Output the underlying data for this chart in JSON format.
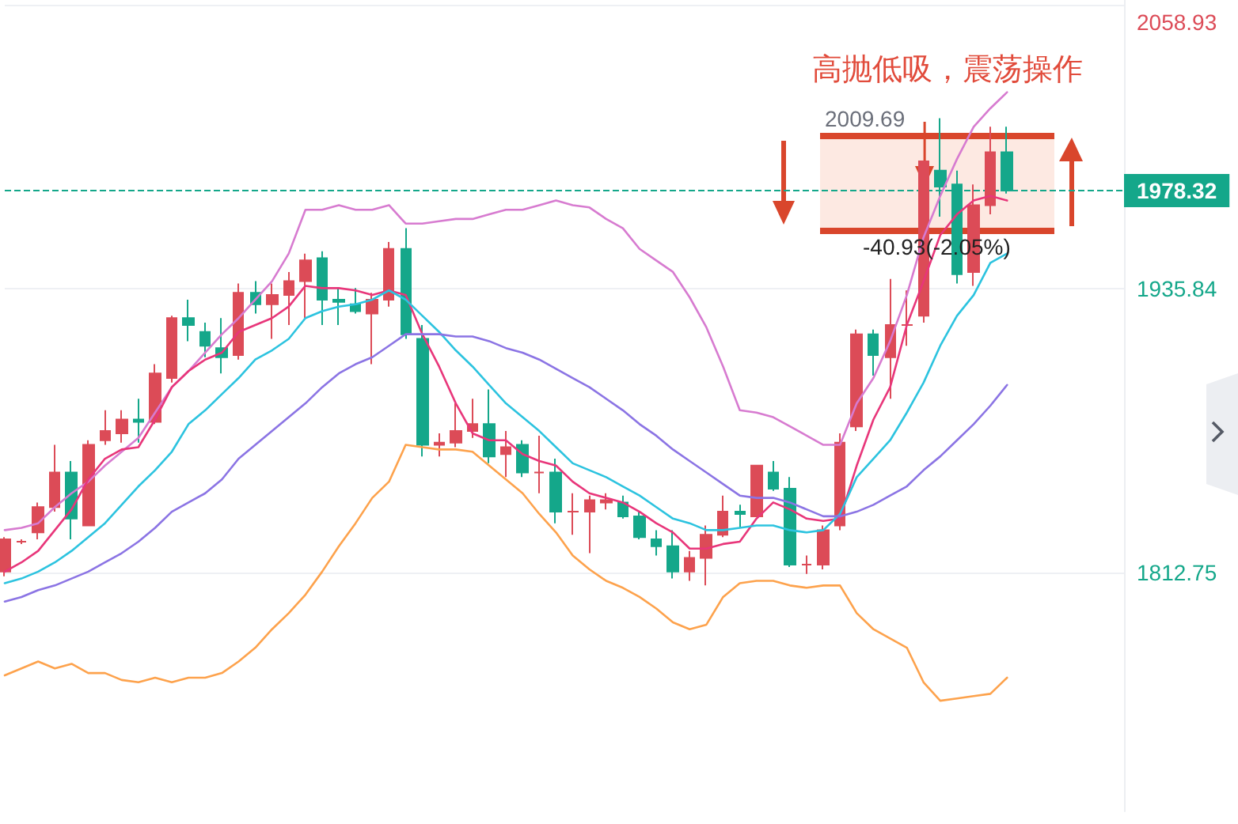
{
  "chart_data": {
    "type": "candlestick",
    "title": "高抛低吸，震荡操作",
    "categories": [
      null,
      null,
      null,
      null,
      null,
      null,
      null,
      null,
      null,
      null,
      null,
      null,
      null,
      null,
      null,
      null,
      null,
      null,
      null,
      null,
      null,
      null,
      null,
      null,
      null,
      null,
      null,
      null,
      null,
      null,
      null,
      null,
      null,
      null,
      null,
      null,
      null,
      null,
      null,
      null,
      null,
      null,
      null,
      null,
      null,
      null,
      null,
      null,
      null,
      null,
      null,
      null,
      null,
      null,
      null,
      null,
      null,
      null,
      null,
      null,
      null,
      null,
      null,
      null,
      null,
      null,
      null,
      null
    ],
    "series": [
      {
        "ohlc": [
          [
            1813,
            1828,
            1811,
            1827
          ],
          [
            1826,
            1827,
            1825,
            1826
          ],
          [
            1830,
            1843,
            1827,
            1841
          ],
          [
            1841,
            1868,
            1839,
            1856
          ],
          [
            1856,
            1861,
            1827,
            1836
          ],
          [
            1833,
            1870,
            1833,
            1868
          ],
          [
            1870,
            1883,
            1868,
            1874
          ],
          [
            1873,
            1883,
            1869,
            1879
          ],
          [
            1879,
            1888,
            1869,
            1878
          ],
          [
            1878,
            1903,
            1877,
            1899
          ],
          [
            1897,
            1924,
            1895,
            1923
          ],
          [
            1923,
            1931,
            1913,
            1920
          ],
          [
            1917,
            1921,
            1906,
            1911
          ],
          [
            1910,
            1923,
            1899,
            1906
          ],
          [
            1907,
            1938,
            1905,
            1934
          ],
          [
            1934,
            1939,
            1925,
            1929
          ],
          [
            1929,
            1938,
            1914,
            1933
          ],
          [
            1933,
            1943,
            1920,
            1939
          ],
          [
            1939,
            1951,
            1923,
            1948
          ],
          [
            1949,
            1952,
            1920,
            1931
          ],
          [
            1931,
            1936,
            1920,
            1930
          ],
          [
            1929,
            1936,
            1925,
            1926
          ],
          [
            1925,
            1934,
            1903,
            1931
          ],
          [
            1931,
            1956,
            1928,
            1953
          ],
          [
            1953,
            1962,
            1914,
            1916
          ],
          [
            1914,
            1920,
            1863,
            1868
          ],
          [
            1868,
            1873,
            1863,
            1869
          ],
          [
            1869,
            1886,
            1867,
            1874
          ],
          [
            1874,
            1888,
            1871,
            1877
          ],
          [
            1877,
            1892,
            1860,
            1863
          ],
          [
            1864,
            1874,
            1854,
            1867
          ],
          [
            1868,
            1870,
            1854,
            1856
          ],
          [
            1856,
            1872,
            1847,
            1856
          ],
          [
            1856,
            1862,
            1834,
            1839
          ],
          [
            1839,
            1847,
            1829,
            1839
          ],
          [
            1839,
            1846,
            1821,
            1844
          ],
          [
            1843,
            1847,
            1840,
            1844
          ],
          [
            1843,
            1846,
            1836,
            1837
          ],
          [
            1837,
            1839,
            1827,
            1828
          ],
          [
            1827,
            1831,
            1820,
            1824
          ],
          [
            1824,
            1831,
            1810,
            1813
          ],
          [
            1813,
            1822,
            1809,
            1819
          ],
          [
            1819,
            1833,
            1807,
            1829
          ],
          [
            1829,
            1846,
            1828,
            1839
          ],
          [
            1839,
            1842,
            1832,
            1838
          ],
          [
            1837,
            1859,
            1837,
            1859
          ],
          [
            1856,
            1861,
            1848,
            1849
          ],
          [
            1849,
            1854,
            1815,
            1816
          ],
          [
            1816,
            1820,
            1812,
            1816
          ],
          [
            1816,
            1833,
            1814,
            1831
          ],
          [
            1833,
            1873,
            1831,
            1869
          ],
          [
            1876,
            1918,
            1874,
            1916
          ],
          [
            1916,
            1918,
            1898,
            1907
          ],
          [
            1906,
            1940,
            1888,
            1920
          ],
          [
            1920,
            1935,
            1911,
            1920
          ],
          [
            1924,
            1991,
            1921,
            1991
          ],
          [
            1987,
            2009.69,
            1967,
            1980
          ],
          [
            1981,
            1987,
            1938,
            1942
          ],
          [
            1943,
            1981,
            1937,
            1972
          ],
          [
            1972,
            2006,
            1968,
            1995
          ],
          [
            1995,
            2006,
            1977,
            1978.32
          ],
          null,
          null,
          null,
          null,
          null,
          null,
          null
        ],
        "colors": [
          "#dc4b57",
          "#dc4b57",
          "#dc4b57",
          "#dc4b57",
          "#14a78a",
          "#dc4b57",
          "#dc4b57",
          "#dc4b57",
          "#14a78a",
          "#dc4b57",
          "#dc4b57",
          "#14a78a",
          "#14a78a",
          "#14a78a",
          "#dc4b57",
          "#14a78a",
          "#dc4b57",
          "#dc4b57",
          "#dc4b57",
          "#14a78a",
          "#14a78a",
          "#14a78a",
          "#dc4b57",
          "#dc4b57",
          "#14a78a",
          "#14a78a",
          "#dc4b57",
          "#dc4b57",
          "#dc4b57",
          "#14a78a",
          "#dc4b57",
          "#14a78a",
          "#dc4b57",
          "#14a78a",
          "#dc4b57",
          "#dc4b57",
          "#dc4b57",
          "#14a78a",
          "#14a78a",
          "#14a78a",
          "#14a78a",
          "#dc4b57",
          "#dc4b57",
          "#dc4b57",
          "#14a78a",
          "#dc4b57",
          "#14a78a",
          "#14a78a",
          "#dc4b57",
          "#dc4b57",
          "#dc4b57",
          "#dc4b57",
          "#14a78a",
          "#dc4b57",
          "#dc4b57",
          "#dc4b57",
          "#14a78a",
          "#14a78a",
          "#dc4b57",
          "#dc4b57",
          "#14a78a",
          null,
          null,
          null,
          null,
          null,
          null,
          null
        ]
      },
      {
        "type": "line",
        "color": "#d77bd0",
        "values": [
          1831,
          1832,
          1834,
          1841,
          1847,
          1852,
          1859,
          1865,
          1871,
          1882,
          1893,
          1900,
          1908,
          1916,
          1923,
          1931,
          1939,
          1951,
          1970,
          1970,
          1972,
          1970,
          1970,
          1972,
          1964,
          1964,
          1965,
          1966,
          1966,
          1968,
          1970,
          1970,
          1972,
          1974,
          1972,
          1971,
          1966,
          1962,
          1953,
          1948,
          1943,
          1932,
          1919,
          1902,
          1883,
          1882,
          1880,
          1876,
          1872,
          1868,
          1868,
          1886,
          1897,
          1913,
          1933,
          1958,
          1976,
          1992,
          2006,
          2014,
          2021,
          null,
          null,
          null,
          null,
          null,
          null,
          null
        ]
      },
      {
        "type": "line",
        "color": "#e8367a",
        "values": [
          1813,
          1817,
          1822,
          1831,
          1840,
          1853,
          1862,
          1866,
          1867,
          1879,
          1893,
          1900,
          1905,
          1908,
          1917,
          1920,
          1923,
          1928,
          1937,
          1936,
          1936,
          1935,
          1933,
          1935,
          1933,
          1916,
          1902,
          1886,
          1873,
          1870,
          1870,
          1864,
          1861,
          1859,
          1852,
          1847,
          1845,
          1843,
          1839,
          1834,
          1830,
          1823,
          1823,
          1825,
          1826,
          1836,
          1843,
          1840,
          1836,
          1835,
          1836,
          1859,
          1879,
          1893,
          1920,
          1939,
          1959,
          1968,
          1974,
          1976,
          1974,
          null,
          null,
          null,
          null,
          null,
          null,
          null
        ]
      },
      {
        "type": "line",
        "color": "#2cc3df",
        "values": [
          1808,
          1810,
          1813,
          1817,
          1822,
          1828,
          1834,
          1842,
          1850,
          1857,
          1865,
          1877,
          1883,
          1890,
          1897,
          1905,
          1909,
          1914,
          1923,
          1926,
          1928,
          1929,
          1931,
          1935,
          1931,
          1924,
          1917,
          1909,
          1902,
          1894,
          1886,
          1880,
          1874,
          1867,
          1860,
          1857,
          1854,
          1850,
          1846,
          1841,
          1836,
          1834,
          1831,
          1831,
          1832,
          1833,
          1833,
          1831,
          1830,
          1831,
          1838,
          1854,
          1862,
          1870,
          1882,
          1895,
          1911,
          1924,
          1933,
          1947,
          1951,
          null,
          null,
          null,
          null,
          null,
          null,
          null
        ]
      },
      {
        "type": "line",
        "color": "#8b74e4",
        "values": [
          1800,
          1802,
          1805,
          1807,
          1810,
          1813,
          1817,
          1821,
          1826,
          1832,
          1839,
          1843,
          1847,
          1853,
          1862,
          1868,
          1874,
          1880,
          1886,
          1893,
          1899,
          1903,
          1906,
          1911,
          1916,
          1916,
          1916,
          1915,
          1915,
          1913,
          1910,
          1908,
          1905,
          1901,
          1897,
          1893,
          1888,
          1883,
          1877,
          1872,
          1866,
          1861,
          1856,
          1851,
          1846,
          1845,
          1845,
          1843,
          1840,
          1837,
          1837,
          1839,
          1842,
          1846,
          1850,
          1857,
          1863,
          1870,
          1877,
          1885,
          1894,
          null,
          null,
          null,
          null,
          null,
          null,
          null
        ]
      },
      {
        "type": "line",
        "color": "#fda24c",
        "values": [
          1768,
          1771,
          1774,
          1771,
          1773,
          1769,
          1769,
          1766,
          1765,
          1767,
          1765,
          1767,
          1767,
          1769,
          1774,
          1780,
          1788,
          1795,
          1803,
          1813,
          1824,
          1834,
          1845,
          1852,
          1868,
          1867,
          1866,
          1866,
          1865,
          1859,
          1853,
          1847,
          1838,
          1830,
          1820,
          1814,
          1809,
          1806,
          1802,
          1797,
          1791,
          1788,
          1790,
          1802,
          1808,
          1809,
          1809,
          1807,
          1806,
          1807,
          1807,
          1795,
          1788,
          1784,
          1780,
          1765,
          1757,
          1758,
          1759,
          1760,
          1767,
          null,
          null,
          null,
          null,
          null,
          null,
          null
        ]
      }
    ],
    "ylim": [
      1709,
      2061
    ],
    "yticks": [
      1812.75,
      1935.84,
      2058.93
    ],
    "grid": "y",
    "marker": "none",
    "line_style": "solid",
    "ref_lines": [
      {
        "axis": "y",
        "value": 1978.32,
        "label": "1978.32",
        "color": "#14a78a",
        "line_style": "dashed"
      }
    ],
    "annotations": [
      "2009.69",
      "-40.93(-2.05%)"
    ]
  }
}
